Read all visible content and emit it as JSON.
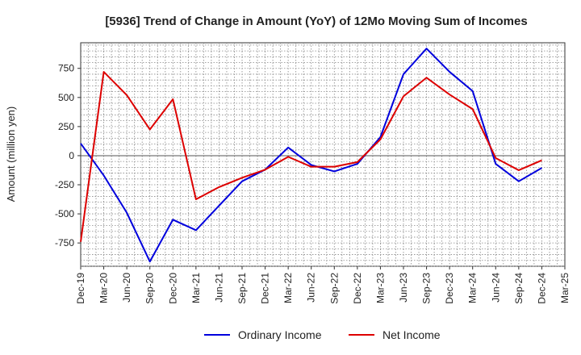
{
  "chart_data": {
    "type": "line",
    "title": "[5936]  Trend of Change in Amount (YoY) of 12Mo Moving Sum of Incomes",
    "ylabel": "Amount (million yen)",
    "xlabel": "",
    "ylim": [
      -950,
      970
    ],
    "yticks": [
      -750,
      -500,
      -250,
      0,
      250,
      500,
      750
    ],
    "ytick_labels": [
      "-750",
      "-500",
      "-250",
      "0",
      "250",
      "500",
      "750"
    ],
    "categories": [
      "Dec-19",
      "Mar-20",
      "Jun-20",
      "Sep-20",
      "Dec-20",
      "Mar-21",
      "Jun-21",
      "Sep-21",
      "Dec-21",
      "Mar-22",
      "Jun-22",
      "Sep-22",
      "Dec-22",
      "Mar-23",
      "Jun-23",
      "Sep-23",
      "Dec-23",
      "Mar-24",
      "Jun-24",
      "Sep-24",
      "Dec-24",
      "Mar-25"
    ],
    "grid": true,
    "legend_position": "bottom",
    "series": [
      {
        "name": "Ordinary Income",
        "color": "#0000dd",
        "values": [
          105,
          -170,
          -490,
          -910,
          -550,
          -640,
          -430,
          -220,
          -120,
          70,
          -80,
          -135,
          -70,
          160,
          700,
          920,
          720,
          555,
          -70,
          -220,
          -105,
          null
        ]
      },
      {
        "name": "Net Income",
        "color": "#dd0000",
        "values": [
          -740,
          720,
          520,
          225,
          485,
          -375,
          -270,
          -190,
          -120,
          -10,
          -95,
          -95,
          -55,
          140,
          510,
          670,
          525,
          400,
          -20,
          -125,
          -40,
          null
        ]
      }
    ]
  }
}
